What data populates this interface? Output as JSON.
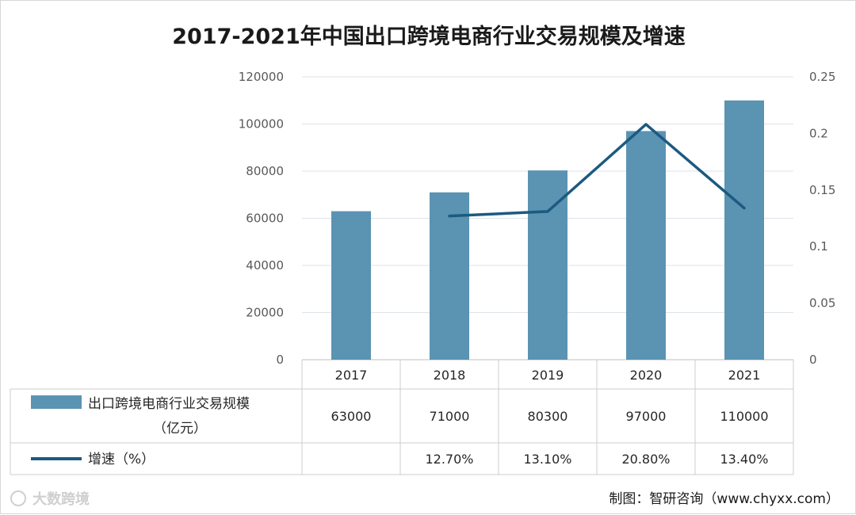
{
  "chart_data": {
    "type": "bar+line",
    "title": "2017-2021年中国出口跨境电商行业交易规模及增速",
    "categories": [
      "2017",
      "2018",
      "2019",
      "2020",
      "2021"
    ],
    "series": [
      {
        "name": "出口跨境电商行业交易规模",
        "unit_label": "（亿元）",
        "kind": "bar",
        "axis": "left",
        "color": "#5b93b2",
        "values": [
          63000,
          71000,
          80300,
          97000,
          110000
        ],
        "table_values": [
          "63000",
          "71000",
          "80300",
          "97000",
          "110000"
        ]
      },
      {
        "name": "增速（%）",
        "kind": "line",
        "axis": "right",
        "color": "#1c5a80",
        "values": [
          null,
          0.127,
          0.131,
          0.208,
          0.134
        ],
        "table_values": [
          "",
          "12.70%",
          "13.10%",
          "20.80%",
          "13.40%"
        ]
      }
    ],
    "y_left": {
      "min": 0,
      "max": 120000,
      "ticks": [
        "0",
        "20000",
        "40000",
        "60000",
        "80000",
        "100000",
        "120000"
      ]
    },
    "y_right": {
      "min": 0,
      "max": 0.25,
      "ticks": [
        "0",
        "0.05",
        "0.1",
        "0.15",
        "0.2",
        "0.25"
      ]
    },
    "grid": true,
    "legend": "data-table"
  },
  "credit": "制图：智研咨询（www.chyxx.com）",
  "watermark": "大数跨境"
}
